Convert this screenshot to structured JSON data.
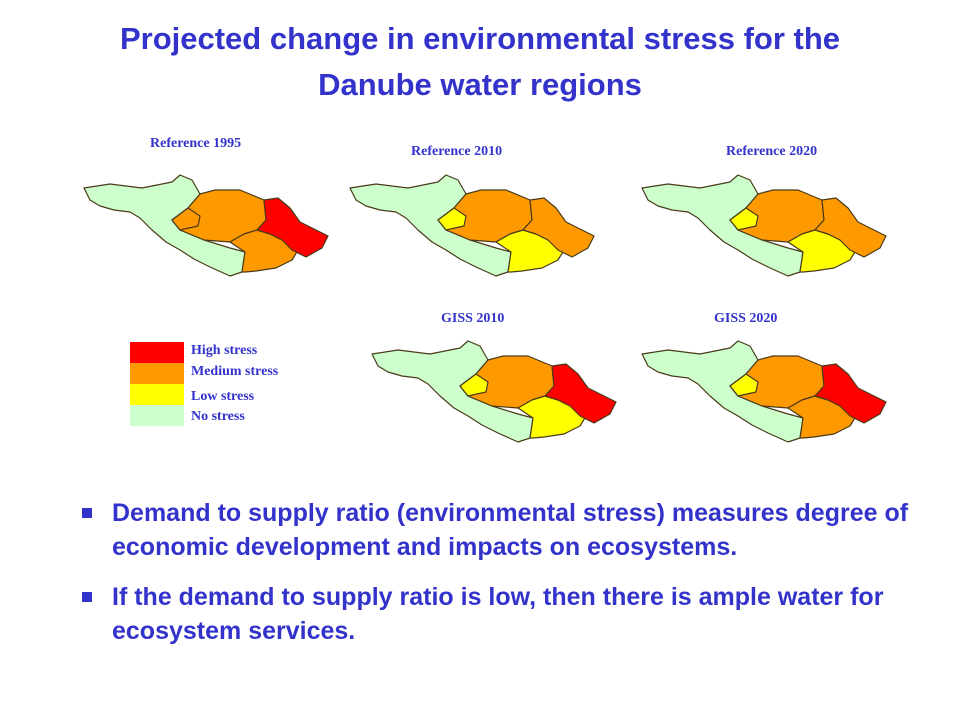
{
  "title_line1": "Projected change in environmental stress for the",
  "title_line2": "Danube water regions",
  "legend": [
    {
      "label": "High stress",
      "color": "#ff0000"
    },
    {
      "label": "Medium stress",
      "color": "#ff9900"
    },
    {
      "label": "Low stress",
      "color": "#ffff00"
    },
    {
      "label": "No stress",
      "color": "#ccffcc"
    }
  ],
  "maps": [
    {
      "label": "Reference 1995",
      "regions": {
        "west": "No stress",
        "central": "Medium stress",
        "southeast": "Medium stress",
        "east": "High stress",
        "small": "Medium stress"
      }
    },
    {
      "label": "Reference  2010",
      "regions": {
        "west": "No stress",
        "central": "Medium stress",
        "southeast": "Low stress",
        "east": "Medium stress",
        "small": "Low stress"
      }
    },
    {
      "label": "Reference  2020",
      "regions": {
        "west": "No stress",
        "central": "Medium stress",
        "southeast": "Low stress",
        "east": "Medium stress",
        "small": "Low stress"
      }
    },
    {
      "label": "GISS 2010",
      "regions": {
        "west": "No stress",
        "central": "Medium stress",
        "southeast": "Low stress",
        "east": "High stress",
        "small": "Low stress"
      }
    },
    {
      "label": "GISS 2020",
      "regions": {
        "west": "No stress",
        "central": "Medium stress",
        "southeast": "Medium stress",
        "east": "High stress",
        "small": "Low stress"
      }
    }
  ],
  "bullets": [
    "Demand to supply ratio (environmental stress) measures degree of economic development and impacts on ecosystems.",
    "If the demand to supply ratio is low, then there is ample water for ecosystem services."
  ]
}
